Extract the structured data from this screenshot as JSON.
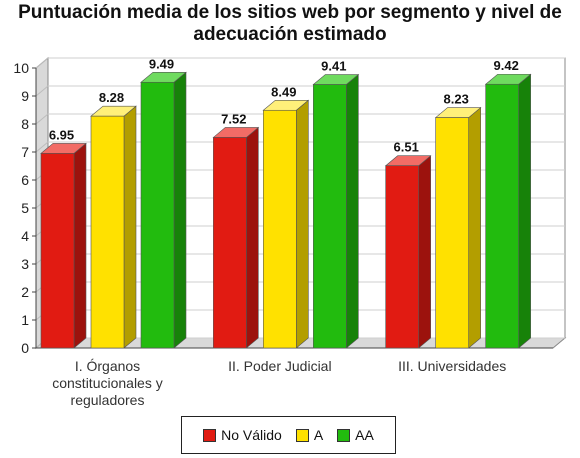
{
  "chart_data": {
    "type": "bar",
    "title_lines": [
      "Puntuación media de los sitios web por segmento y nivel de",
      "adecuación estimado"
    ],
    "categories": [
      [
        "I. Órganos",
        "constitucionales y",
        "reguladores"
      ],
      [
        "II. Poder Judicial"
      ],
      [
        "III. Universidades"
      ]
    ],
    "series": [
      {
        "name": "No Válido",
        "values": [
          6.95,
          7.52,
          6.51
        ],
        "labels": [
          "6.95",
          "7.52",
          "6.51"
        ],
        "color": "#e11b12",
        "side_color": "#9c120d",
        "top_color": "#f26c66"
      },
      {
        "name": "A",
        "values": [
          8.28,
          8.49,
          8.23
        ],
        "labels": [
          "8.28",
          "8.49",
          "8.23"
        ],
        "color": "#ffe100",
        "side_color": "#b39e00",
        "top_color": "#fff07a"
      },
      {
        "name": "AA",
        "values": [
          9.49,
          9.41,
          9.42
        ],
        "labels": [
          "9.49",
          "9.41",
          "9.42"
        ],
        "color": "#22bb0e",
        "side_color": "#178209",
        "top_color": "#6fdb5f"
      }
    ],
    "ylim": [
      0,
      10
    ],
    "yticks": [
      "0",
      "1",
      "2",
      "3",
      "4",
      "5",
      "6",
      "7",
      "8",
      "9",
      "10"
    ],
    "grid": true,
    "legend_position": "bottom",
    "three_d": true
  }
}
